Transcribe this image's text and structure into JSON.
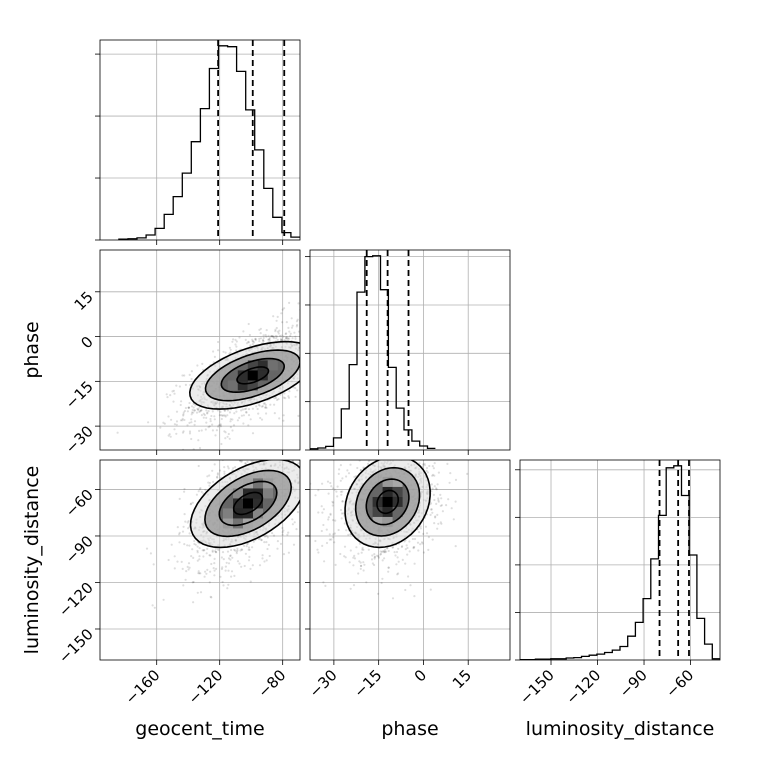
{
  "chart_data": {
    "type": "corner",
    "parameters": [
      "geocent_time",
      "phase",
      "luminosity_distance"
    ],
    "axis_labels": {
      "geocent_time": "geocent_time",
      "phase": "phase",
      "luminosity_distance": "luminosity_distance"
    },
    "ranges": {
      "geocent_time": [
        -196,
        -69
      ],
      "phase": [
        -38,
        29
      ],
      "luminosity_distance": [
        -170,
        -41
      ]
    },
    "ticks": {
      "geocent_time": [
        -160,
        -120,
        -80
      ],
      "phase": [
        -30,
        -15,
        0,
        15
      ],
      "luminosity_distance": [
        -150,
        -120,
        -90,
        -60
      ]
    },
    "grid": true,
    "quantile_lines": {
      "geocent_time": [
        -121,
        -99,
        -79
      ],
      "phase": [
        -19,
        -12,
        -5
      ],
      "luminosity_distance": [
        -80,
        -68,
        -61
      ]
    },
    "histograms": [
      {
        "parameter": "geocent_time",
        "bin_range": [
          -184,
          -69
        ],
        "counts": [
          2,
          3,
          5,
          12,
          28,
          62,
          105,
          162,
          238,
          318,
          415,
          470,
          468,
          408,
          315,
          218,
          125,
          55,
          18,
          7
        ]
      },
      {
        "parameter": "phase",
        "bin_range": [
          -38,
          4
        ],
        "counts": [
          3,
          5,
          9,
          30,
          102,
          212,
          392,
          480,
          482,
          398,
          205,
          104,
          50,
          22,
          10,
          4
        ]
      },
      {
        "parameter": "luminosity_distance",
        "bin_range": [
          -170,
          -41
        ],
        "counts": [
          1,
          1,
          2,
          2,
          3,
          3,
          5,
          6,
          9,
          12,
          15,
          19,
          25,
          34,
          60,
          95,
          155,
          255,
          365,
          485,
          490,
          415,
          265,
          105,
          40,
          3
        ]
      }
    ],
    "joint_distributions": [
      {
        "x": "geocent_time",
        "y": "phase",
        "mean": [
          -99,
          -13
        ],
        "sd": [
          17,
          7.2
        ],
        "rho": 0.62,
        "contour_levels_sigma": [
          0.5,
          1,
          1.5,
          2
        ]
      },
      {
        "x": "geocent_time",
        "y": "luminosity_distance",
        "mean": [
          -102,
          -69
        ],
        "sd": [
          16,
          17
        ],
        "rho": 0.55,
        "contour_levels_sigma": [
          0.5,
          1,
          1.5,
          2
        ]
      },
      {
        "x": "phase",
        "y": "luminosity_distance",
        "mean": [
          -12,
          -68
        ],
        "sd": [
          7,
          15
        ],
        "rho": 0.2,
        "contour_levels_sigma": [
          0.5,
          1,
          1.5,
          2
        ]
      }
    ]
  }
}
